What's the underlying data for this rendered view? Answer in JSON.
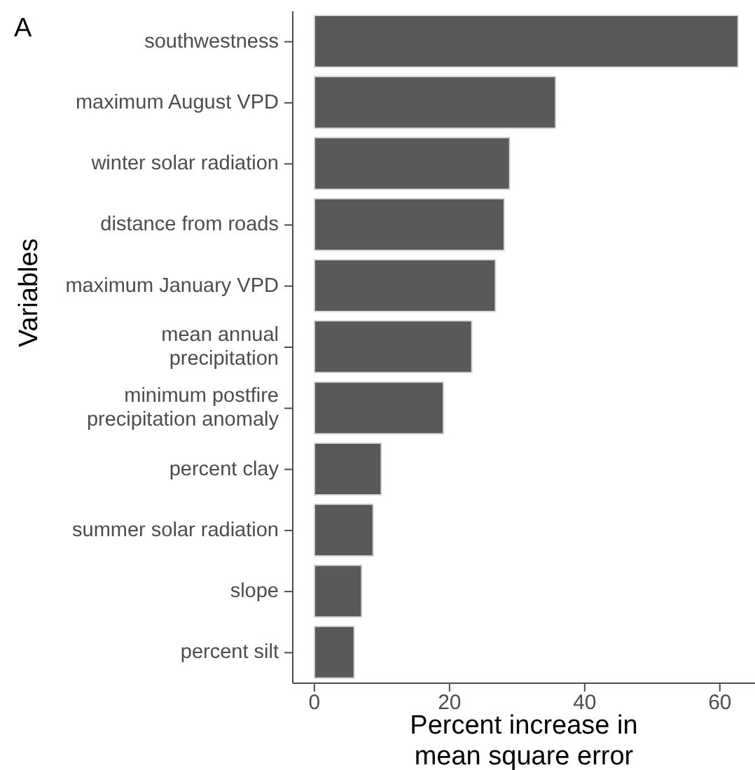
{
  "chart_data": {
    "type": "bar",
    "orientation": "horizontal",
    "xlabel": "Percent increase in\nmean square error",
    "ylabel": "Variables",
    "annotations": [
      "A"
    ],
    "categories": [
      "southwestness",
      "maximum August VPD",
      "winter solar radiation",
      "distance from roads",
      "maximum January VPD",
      "mean annual\nprecipitation",
      "minimum postfire\nprecipitation anomaly",
      "percent clay",
      "summer solar radiation",
      "slope",
      "percent silt"
    ],
    "values": [
      62.7,
      35.7,
      28.9,
      28.1,
      26.8,
      23.3,
      19.1,
      9.9,
      8.7,
      7.0,
      5.9
    ],
    "color": "#595959",
    "xlim": [
      -3.2,
      65.2
    ],
    "xticks": [
      0,
      20,
      40,
      60
    ],
    "grid": false
  }
}
